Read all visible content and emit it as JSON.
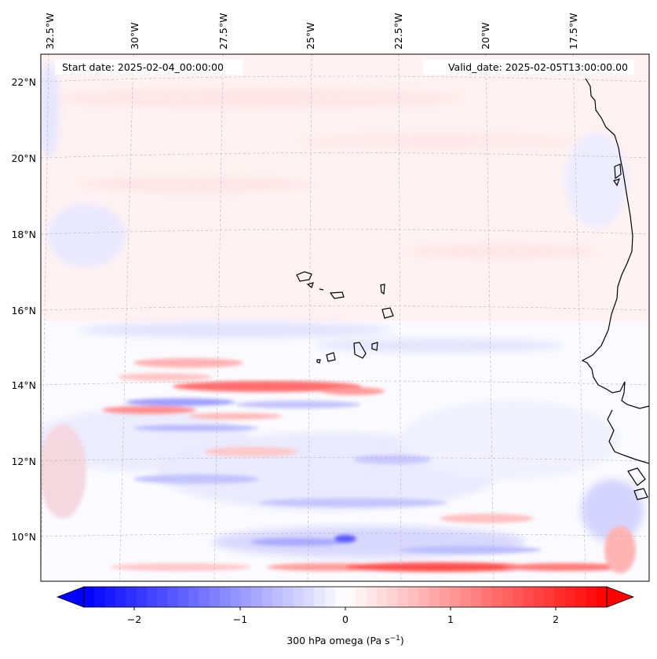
{
  "header": {
    "start_date": "Start date: 2025-02-04_00:00:00",
    "valid_date": "Valid_date: 2025-02-05T13:00:00.00"
  },
  "map": {
    "longitude_labels": [
      "32.5°W",
      "30°W",
      "27.5°W",
      "25°W",
      "22.5°W",
      "20°W",
      "17.5°W"
    ],
    "latitude_labels": [
      "22°N",
      "20°N",
      "18°N",
      "16°N",
      "14°N",
      "12°N",
      "10°N"
    ],
    "field": "300 hPa omega",
    "coastline_color": "#000000",
    "gridline_color": "#b0b0b0"
  },
  "colorbar": {
    "ticks": [
      "−2",
      "−1",
      "0",
      "1",
      "2"
    ],
    "label_main": "300 hPa omega (Pa s",
    "label_exp": "−1",
    "label_close": ")",
    "min": -2.6,
    "max": 2.6,
    "negative_color": "#0000ff",
    "positive_color": "#ff0000",
    "mid_color": "#ffffff"
  }
}
